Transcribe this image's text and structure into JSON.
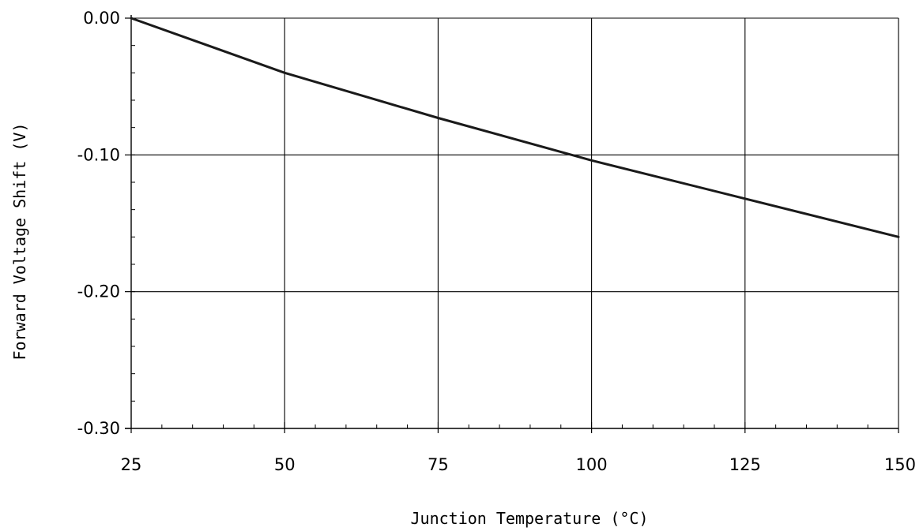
{
  "chart_data": {
    "type": "line",
    "title": "",
    "xlabel": "Junction Temperature (°C)",
    "ylabel": "Forward Voltage Shift (V)",
    "xlim": [
      25,
      150
    ],
    "ylim": [
      -0.3,
      0.0
    ],
    "x_ticks": [
      25,
      50,
      75,
      100,
      125,
      150
    ],
    "x_tick_labels": [
      "25",
      "50",
      "75",
      "100",
      "125",
      "150"
    ],
    "y_ticks": [
      0.0,
      -0.1,
      -0.2,
      -0.3
    ],
    "y_tick_labels": [
      "0.00",
      "-0.10",
      "-0.20",
      "-0.30"
    ],
    "grid": true,
    "series": [
      {
        "x": [
          25,
          50,
          75,
          100,
          125,
          150
        ],
        "y": [
          0.0,
          -0.04,
          -0.073,
          -0.104,
          -0.132,
          -0.16
        ]
      }
    ],
    "colors": {
      "line": "#1a1a1a",
      "grid": "#000000",
      "axis": "#000000"
    }
  }
}
